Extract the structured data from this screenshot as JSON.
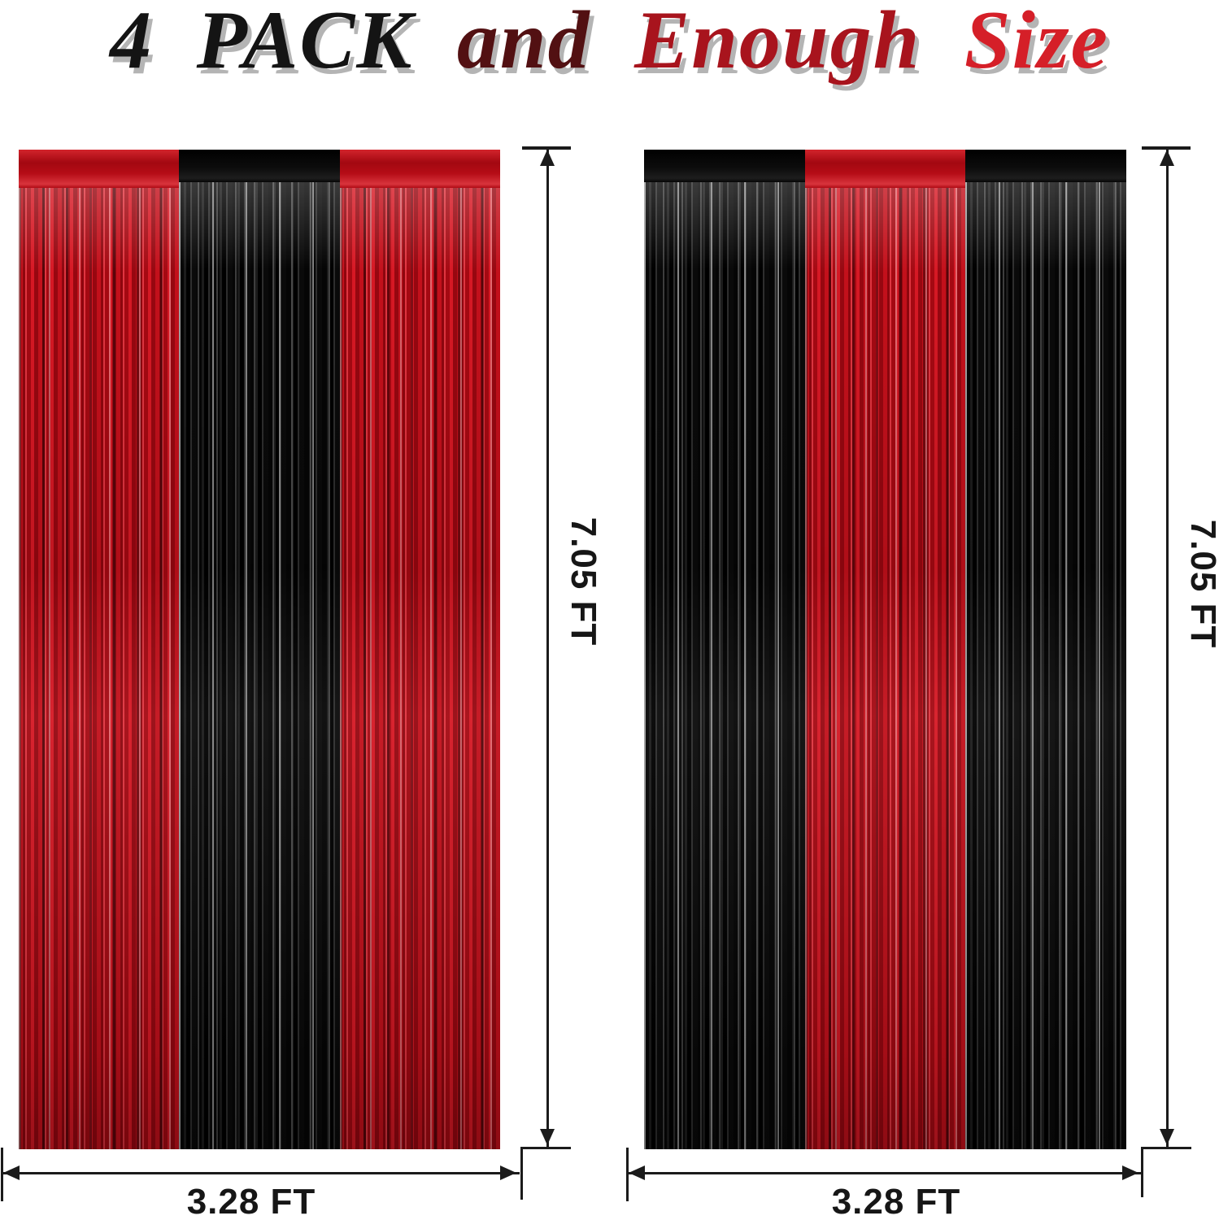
{
  "title": {
    "full_text": "4 PACK and Enough Size",
    "part_pack": "4 PACK",
    "part_and": "and",
    "part_enough": "Enough",
    "part_size": "Size"
  },
  "panels": [
    {
      "id": "left",
      "stripes": [
        "red",
        "black",
        "red"
      ],
      "height_label": "7.05 FT",
      "width_label": "3.28 FT"
    },
    {
      "id": "right",
      "stripes": [
        "black",
        "red",
        "black"
      ],
      "height_label": "7.05 FT",
      "width_label": "3.28 FT"
    }
  ],
  "colors": {
    "foil_red": "#b5101a",
    "foil_black": "#0b0b0b",
    "title_black": "#141414",
    "title_maroon": "#521012",
    "title_dark_red": "#a8141d",
    "title_bright_red": "#d51f28",
    "title_shadow": "#b4b4b4",
    "dimension_line": "#1b1b1b"
  }
}
